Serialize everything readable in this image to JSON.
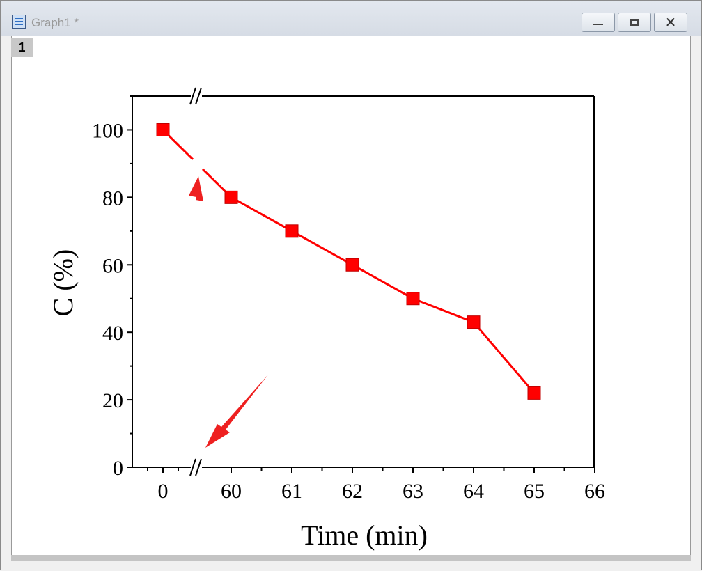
{
  "window": {
    "title": "Graph1 *",
    "layer_label": "1"
  },
  "colors": {
    "series": "#ff0000",
    "arrow": "#ee2020"
  },
  "annotations": [
    "arrow pointing to break in data line",
    "arrow pointing to break in x axis"
  ],
  "chart_data": {
    "type": "line",
    "xlabel": "Time (min)",
    "ylabel": "C (%)",
    "x_ticks": [
      "0",
      "60",
      "61",
      "62",
      "63",
      "64",
      "65",
      "66"
    ],
    "y_ticks": [
      "0",
      "20",
      "40",
      "60",
      "80",
      "100"
    ],
    "ylim": [
      0,
      110
    ],
    "x_axis_break": [
      0,
      60
    ],
    "grid": false,
    "legend": "none",
    "marker": "square",
    "x": [
      0,
      60,
      61,
      62,
      63,
      64,
      65
    ],
    "series": [
      {
        "values": [
          100,
          80,
          70,
          60,
          50,
          43,
          22
        ]
      }
    ]
  }
}
